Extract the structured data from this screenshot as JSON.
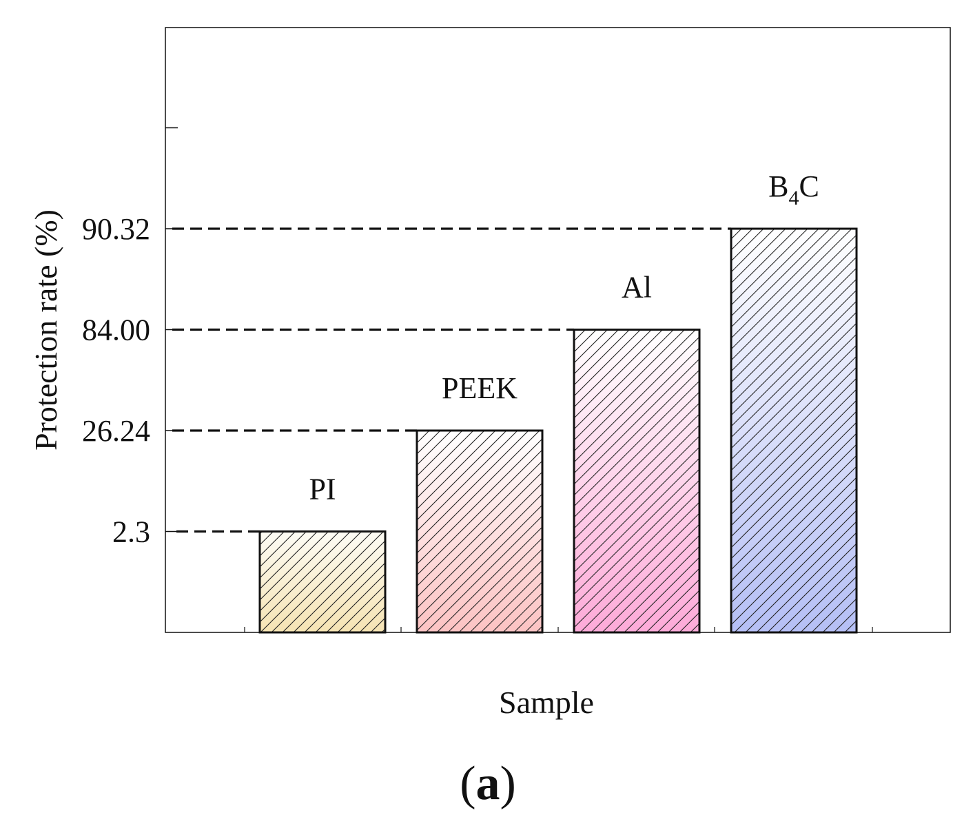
{
  "chart_data": {
    "type": "bar",
    "categories": [
      "PI",
      "PEEK",
      "Al",
      "B4C"
    ],
    "category_labels": [
      {
        "main": "PI",
        "sub": ""
      },
      {
        "main": "PEEK",
        "sub": ""
      },
      {
        "main": "Al",
        "sub": ""
      },
      {
        "main": "B",
        "sub": "4",
        "tail": "C"
      }
    ],
    "values": [
      2.3,
      26.24,
      84.0,
      90.32
    ],
    "value_labels": [
      "2.3",
      "26.24",
      "84.00",
      "90.32"
    ],
    "ylabel": "Protection rate (%)",
    "xlabel": "Sample",
    "panel_label": "a",
    "reference_lines": "dashed",
    "grid": false,
    "legend": "none",
    "y_axis_note": "non-linear scale: tick labels placed at the bar values",
    "colors": {
      "PI": [
        "#fdfcf5",
        "#f5e3b3"
      ],
      "PEEK": [
        "#ffffff",
        "#fcc3c3"
      ],
      "Al": [
        "#ffffff",
        "#fdaad8"
      ],
      "B4C": [
        "#ffffff",
        "#b5bff5"
      ]
    },
    "bar_outline": "#111111",
    "hatch": "diagonal"
  }
}
